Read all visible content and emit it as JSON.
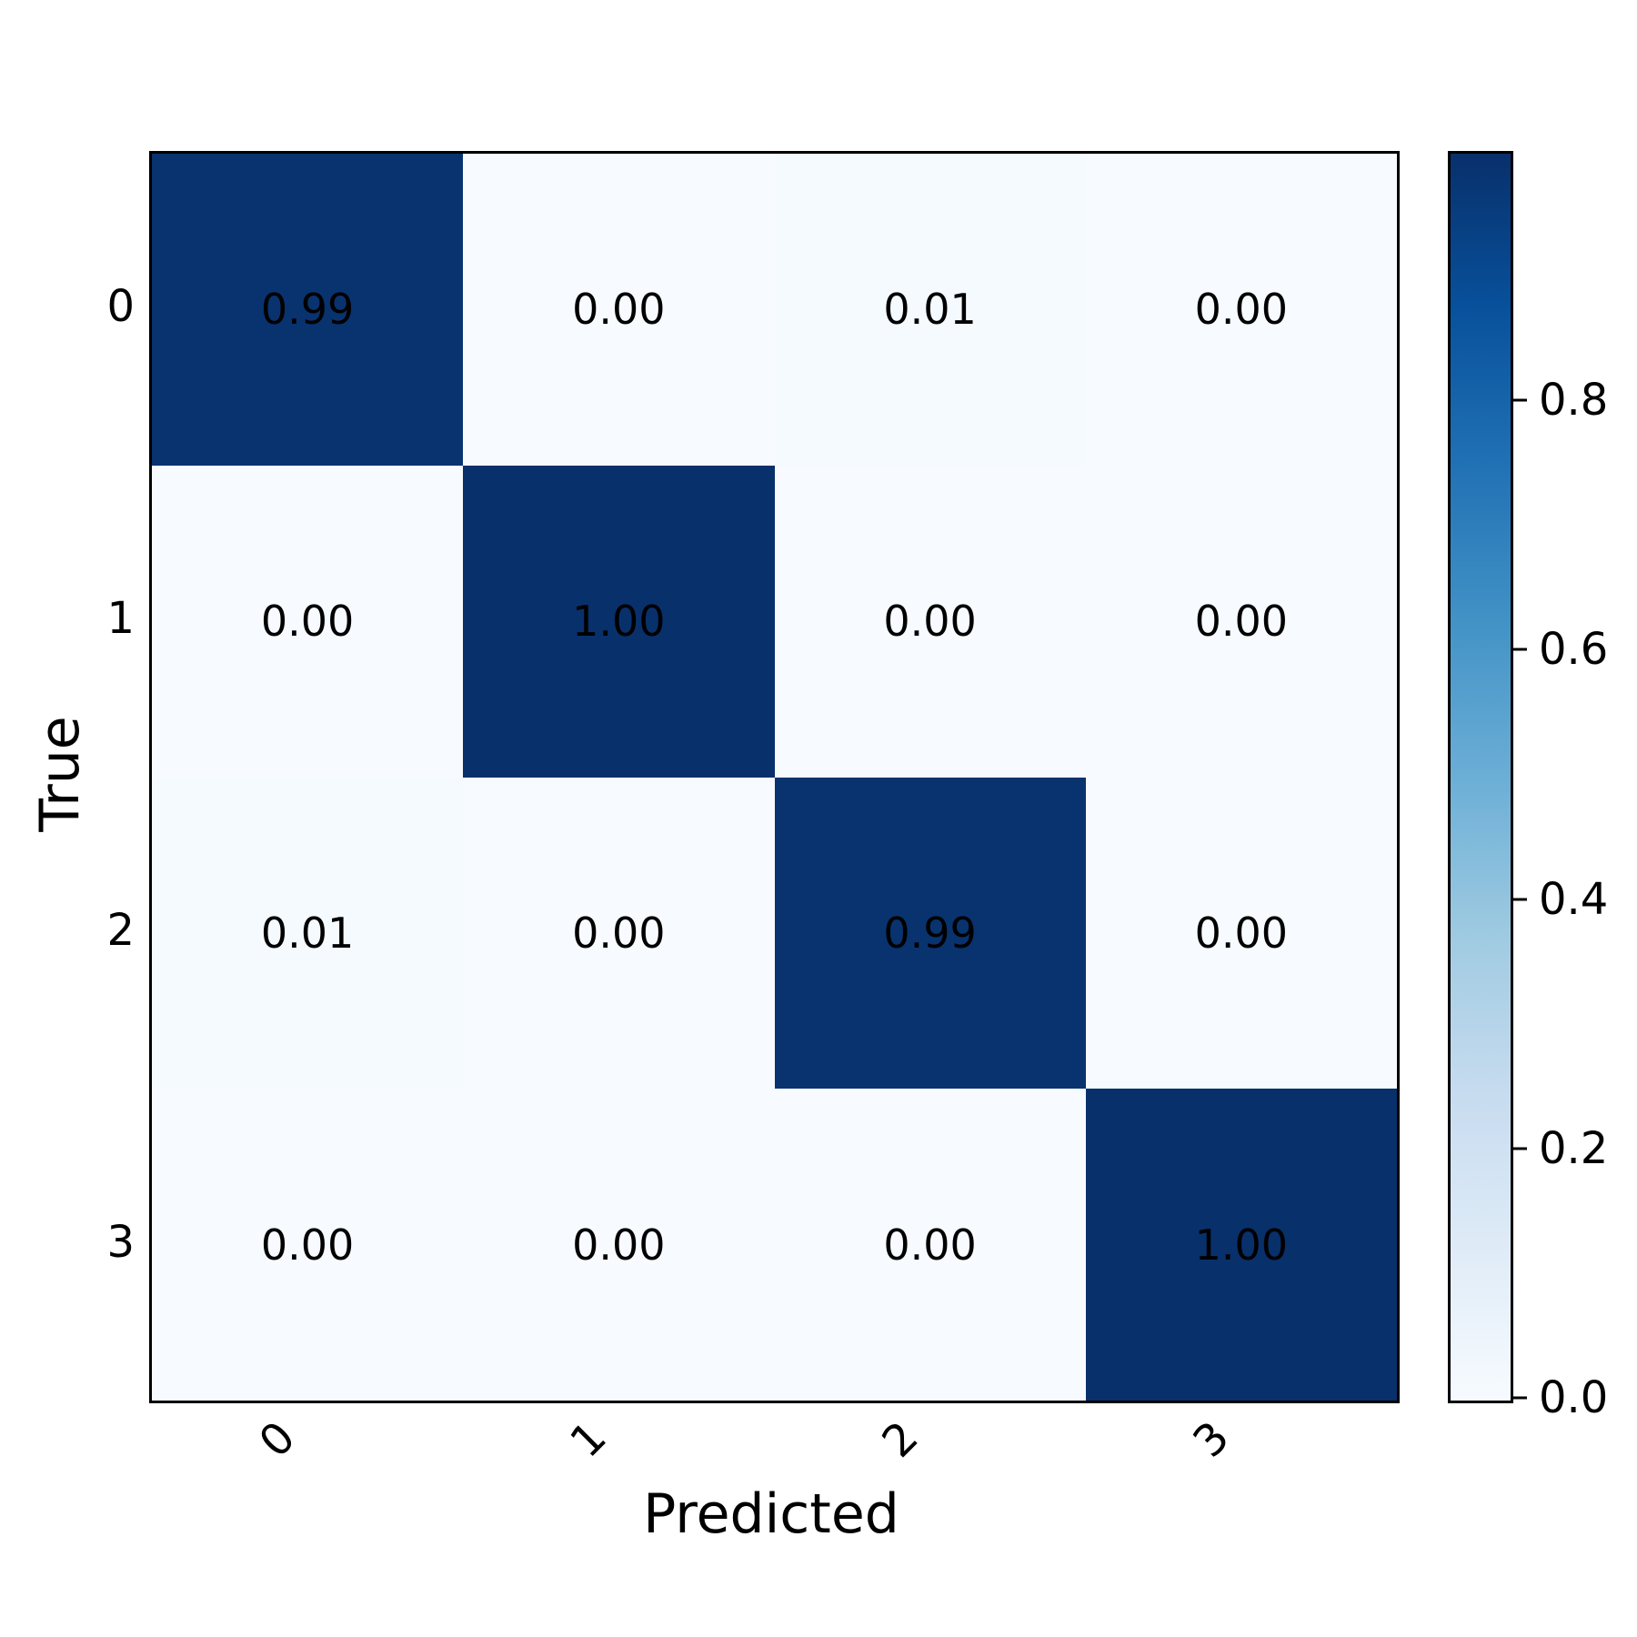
{
  "chart_data": {
    "type": "heatmap",
    "title": "",
    "xlabel": "Predicted",
    "ylabel": "True",
    "x_tick_labels": [
      "0",
      "1",
      "2",
      "3"
    ],
    "y_tick_labels": [
      "0",
      "1",
      "2",
      "3"
    ],
    "matrix": [
      [
        0.99,
        0.0,
        0.01,
        0.0
      ],
      [
        0.0,
        1.0,
        0.0,
        0.0
      ],
      [
        0.01,
        0.0,
        0.99,
        0.0
      ],
      [
        0.0,
        0.0,
        0.0,
        1.0
      ]
    ],
    "value_decimals": 2,
    "annotation_text_color": "#000000",
    "grid": false,
    "legend_position": "none",
    "colormap": {
      "name": "Blues",
      "vmin": 0.0,
      "vmax": 1.0,
      "anchors": [
        {
          "v": 0.0,
          "hex": "#f7fbff"
        },
        {
          "v": 0.125,
          "hex": "#deebf7"
        },
        {
          "v": 0.25,
          "hex": "#c6dbef"
        },
        {
          "v": 0.375,
          "hex": "#9ecae1"
        },
        {
          "v": 0.5,
          "hex": "#6baed6"
        },
        {
          "v": 0.625,
          "hex": "#4292c6"
        },
        {
          "v": 0.75,
          "hex": "#2171b5"
        },
        {
          "v": 0.875,
          "hex": "#08519c"
        },
        {
          "v": 1.0,
          "hex": "#08306b"
        }
      ]
    },
    "colorbar": {
      "position": "right",
      "ticks": [
        0.8,
        0.6,
        0.4,
        0.2,
        0.0
      ],
      "tick_labels": [
        "0.8",
        "0.6",
        "0.4",
        "0.2",
        "0.0"
      ]
    },
    "spine_color": "#000000",
    "background_color": "#ffffff"
  }
}
